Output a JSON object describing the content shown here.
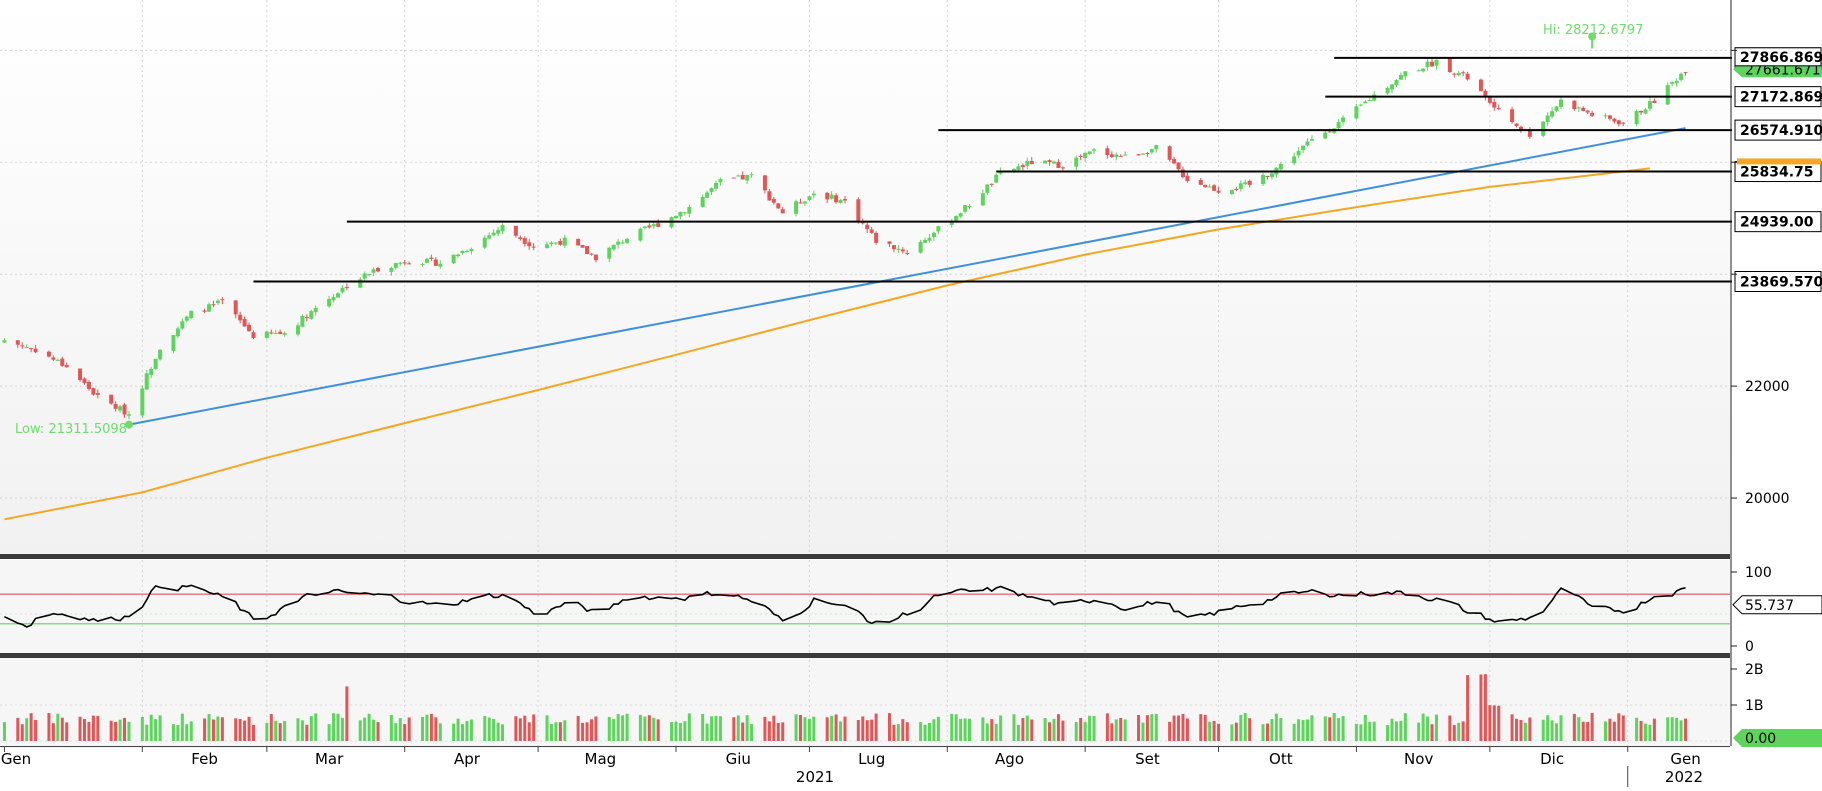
{
  "chart_data": {
    "type": "candlestick",
    "title": "",
    "x_axis": {
      "months": [
        "Gen",
        "Feb",
        "Mar",
        "Apr",
        "Mag",
        "Giu",
        "Lug",
        "Ago",
        "Set",
        "Ott",
        "Nov",
        "Dic",
        "Gen"
      ],
      "years": [
        "2021",
        "2022"
      ]
    },
    "price_panel": {
      "ylim": [
        19000,
        28900
      ],
      "y_ticks": [
        20000,
        22000
      ],
      "annotations": {
        "high_label": "Hi: 28212.6797",
        "high_value": 28212.6797,
        "low_label": "Low: 21311.5098",
        "low_value": 21311.5098
      },
      "last_value_label": "27661.6719",
      "levels": [
        {
          "label": "27866.8691",
          "value": 27866.8691,
          "from": "2021-10-27",
          "to": "2022-01-14"
        },
        {
          "label": "27172.8691",
          "value": 27172.8691,
          "from": "2021-10-25",
          "to": "2022-01-14"
        },
        {
          "label": "26574.9102",
          "value": 26574.9102,
          "from": "2021-07-30",
          "to": "2022-01-14"
        },
        {
          "label": "25834.75",
          "value": 25834.75,
          "from": "2021-08-12",
          "to": "2022-01-14"
        },
        {
          "label": "24939.00",
          "value": 24939.0,
          "from": "2021-03-19",
          "to": "2022-01-14"
        },
        {
          "label": "23869.5703",
          "value": 23869.5703,
          "from": "2021-02-26",
          "to": "2022-01-14"
        }
      ],
      "trendline": {
        "start_date": "2021-01-29",
        "start_value": 21311.5,
        "end_date": "2022-01-14",
        "end_value": 26610
      },
      "moving_average_200": [
        [
          "2021-01-01",
          19620
        ],
        [
          "2021-02-01",
          20100
        ],
        [
          "2021-03-01",
          20720
        ],
        [
          "2021-04-01",
          21340
        ],
        [
          "2021-05-01",
          21930
        ],
        [
          "2021-06-01",
          22560
        ],
        [
          "2021-07-01",
          23180
        ],
        [
          "2021-08-01",
          23800
        ],
        [
          "2021-09-01",
          24350
        ],
        [
          "2021-10-01",
          24800
        ],
        [
          "2021-11-01",
          25200
        ],
        [
          "2021-12-01",
          25560
        ],
        [
          "2022-01-06",
          25890
        ]
      ],
      "close_series": [
        [
          "2021-01-01",
          22820
        ],
        [
          "2021-01-08",
          22650
        ],
        [
          "2021-01-15",
          22350
        ],
        [
          "2021-01-22",
          21800
        ],
        [
          "2021-01-29",
          21500
        ],
        [
          "2021-02-05",
          22700
        ],
        [
          "2021-02-12",
          23300
        ],
        [
          "2021-02-19",
          23500
        ],
        [
          "2021-02-26",
          22900
        ],
        [
          "2021-03-05",
          22950
        ],
        [
          "2021-03-12",
          23400
        ],
        [
          "2021-03-19",
          23800
        ],
        [
          "2021-03-26",
          24100
        ],
        [
          "2021-04-02",
          24250
        ],
        [
          "2021-04-09",
          24200
        ],
        [
          "2021-04-16",
          24500
        ],
        [
          "2021-04-23",
          24850
        ],
        [
          "2021-04-30",
          24500
        ],
        [
          "2021-05-07",
          24600
        ],
        [
          "2021-05-14",
          24300
        ],
        [
          "2021-05-21",
          24650
        ],
        [
          "2021-05-28",
          24900
        ],
        [
          "2021-06-04",
          25200
        ],
        [
          "2021-06-11",
          25650
        ],
        [
          "2021-06-18",
          25750
        ],
        [
          "2021-06-25",
          25100
        ],
        [
          "2021-07-02",
          25450
        ],
        [
          "2021-07-09",
          25300
        ],
        [
          "2021-07-16",
          24600
        ],
        [
          "2021-07-23",
          24400
        ],
        [
          "2021-07-30",
          24800
        ],
        [
          "2021-08-06",
          25250
        ],
        [
          "2021-08-13",
          25800
        ],
        [
          "2021-08-20",
          26000
        ],
        [
          "2021-08-27",
          25950
        ],
        [
          "2021-09-03",
          26200
        ],
        [
          "2021-09-10",
          26100
        ],
        [
          "2021-09-17",
          26250
        ],
        [
          "2021-09-24",
          25700
        ],
        [
          "2021-10-01",
          25500
        ],
        [
          "2021-10-08",
          25600
        ],
        [
          "2021-10-15",
          25950
        ],
        [
          "2021-10-22",
          26400
        ],
        [
          "2021-10-29",
          26750
        ],
        [
          "2021-11-05",
          27200
        ],
        [
          "2021-11-12",
          27600
        ],
        [
          "2021-11-19",
          27800
        ],
        [
          "2021-11-26",
          27500
        ],
        [
          "2021-12-03",
          26900
        ],
        [
          "2021-12-10",
          26500
        ],
        [
          "2021-12-17",
          27100
        ],
        [
          "2021-12-24",
          26850
        ],
        [
          "2021-12-31",
          26700
        ],
        [
          "2022-01-07",
          27100
        ],
        [
          "2022-01-14",
          27661.67
        ]
      ]
    },
    "rsi_panel": {
      "ylim": [
        0,
        100
      ],
      "y_ticks": [
        0,
        100
      ],
      "overbought": 70,
      "oversold": 30,
      "last_label": "55.737",
      "last_value": 55.737
    },
    "volume_panel": {
      "y_ticks": [
        "1B",
        "2B"
      ],
      "last_label": "0.00"
    }
  }
}
